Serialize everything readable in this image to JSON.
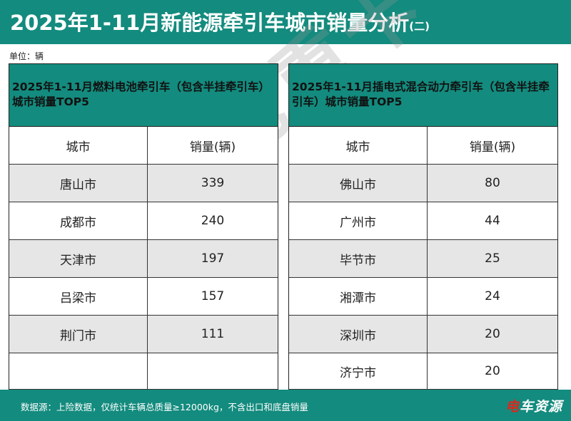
{
  "header": {
    "title": "2025年1-11月新能源牵引车城市销量分析",
    "title_suffix": "(二)"
  },
  "unit_label": "单位：辆",
  "left_table": {
    "title": "2025年1-11月燃料电池牵引车（包含半挂牵引车）城市销量TOP5",
    "col_city": "城市",
    "col_sales": "销量(辆)",
    "rows": [
      {
        "city": "唐山市",
        "sales": "339"
      },
      {
        "city": "成都市",
        "sales": "240"
      },
      {
        "city": "天津市",
        "sales": "197"
      },
      {
        "city": "吕梁市",
        "sales": "157"
      },
      {
        "city": "荆门市",
        "sales": "111"
      },
      {
        "city": "",
        "sales": ""
      }
    ]
  },
  "right_table": {
    "title": "2025年1-11月插电式混合动力牵引车（包含半挂牵引车）城市销量TOP5",
    "col_city": "城市",
    "col_sales": "销量(辆)",
    "rows": [
      {
        "city": "佛山市",
        "sales": "80"
      },
      {
        "city": "广州市",
        "sales": "44"
      },
      {
        "city": "毕节市",
        "sales": "25"
      },
      {
        "city": "湘潭市",
        "sales": "24"
      },
      {
        "city": "深圳市",
        "sales": "20"
      },
      {
        "city": "济宁市",
        "sales": "20"
      }
    ]
  },
  "footer": {
    "source": "数据源：上险数据，仅统计车辆总质量≥12000kg，不含出口和底盘销量",
    "brand_accent": "电",
    "brand_rest": "车资源"
  },
  "watermark": "绿色重卡"
}
